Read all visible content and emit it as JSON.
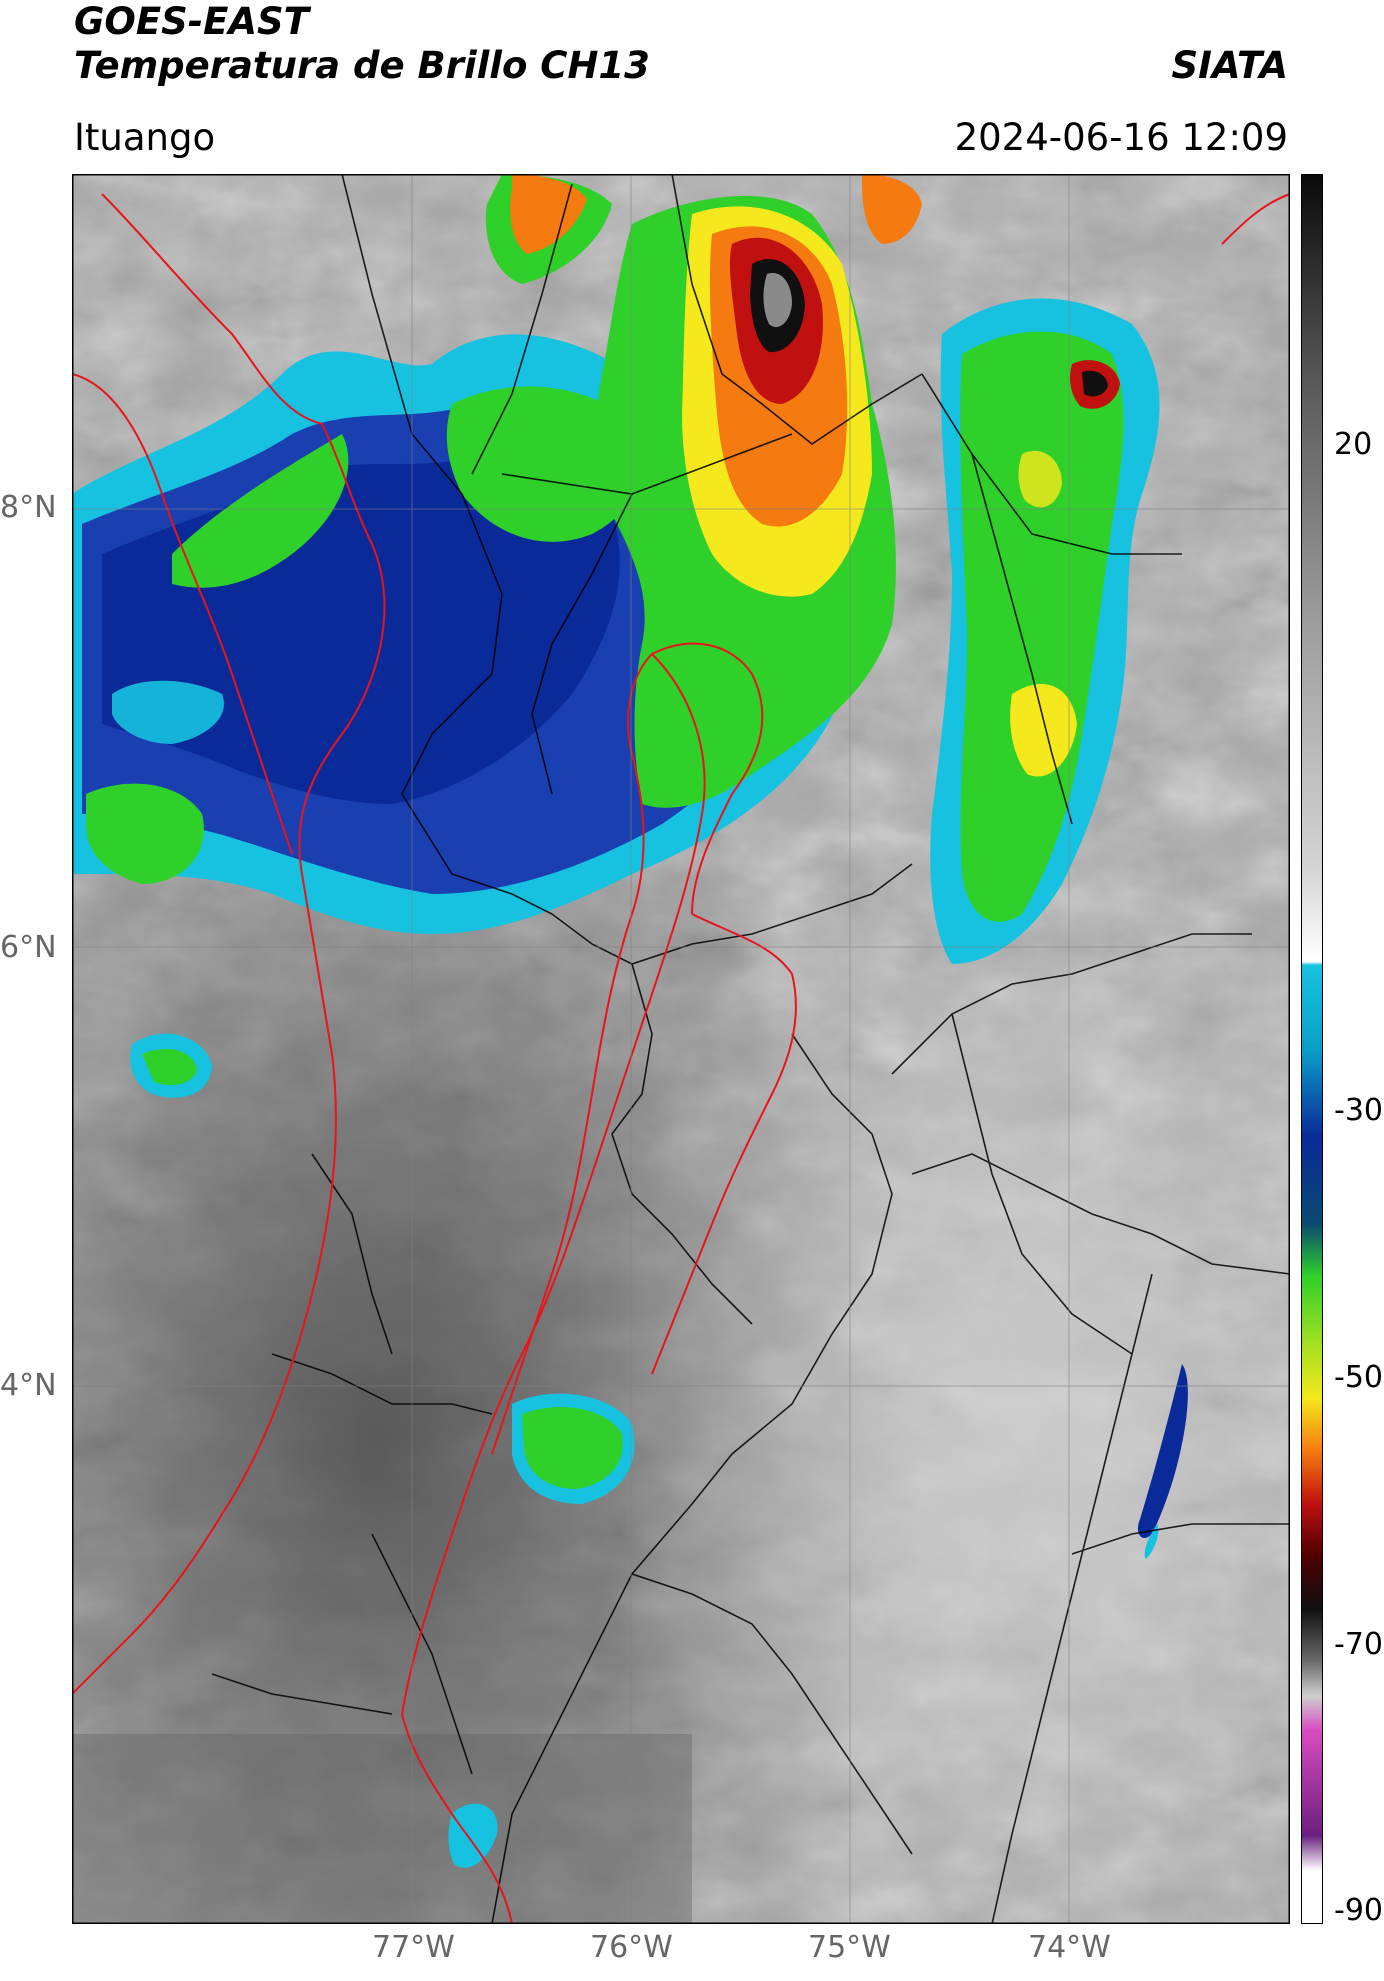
{
  "header": {
    "satellite": "GOES-EAST",
    "product": "Temperatura de Brillo CH13",
    "organization": "SIATA",
    "location": "Ituango",
    "datetime": "2024-06-16 12:09"
  },
  "map": {
    "lat_ticks": [
      "8°N",
      "6°N",
      "4°N"
    ],
    "lon_ticks": [
      "77°W",
      "76°W",
      "75°W",
      "74°W"
    ]
  },
  "colorbar": {
    "ticks": [
      "20",
      "-30",
      "-50",
      "-70",
      "-90"
    ],
    "colors": {
      "warm_gray": "#9a9a9a",
      "cold_cyan": "#17c2e0",
      "deep_blue": "#0a2a9a",
      "green": "#2fd02a",
      "yellow": "#f5e81c",
      "orange": "#f57a10",
      "red": "#c01010",
      "black": "#101010",
      "magenta": "#d94bc1",
      "purple": "#6a1f7f"
    }
  }
}
